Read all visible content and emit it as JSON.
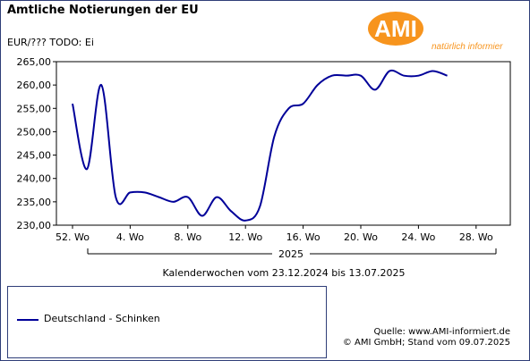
{
  "header": {
    "title": "Amtliche Notierungen der EU",
    "unit": "EUR/??? TODO: Ei"
  },
  "logo": {
    "text": "AMI",
    "tagline": "natürlich informiert.",
    "color": "#f7941d"
  },
  "chart_data": {
    "type": "line",
    "title": "Amtliche Notierungen der EU",
    "ylabel": "EUR/??? TODO: Ei",
    "xlabel": "Kalenderwochen vom 23.12.2024 bis 13.07.2025",
    "x_ticks": [
      "52. Wo",
      "4. Wo",
      "8. Wo",
      "12. Wo",
      "16. Wo",
      "20. Wo",
      "24. Wo",
      "28. Wo"
    ],
    "y_ticks": [
      "230,00",
      "235,00",
      "240,00",
      "245,00",
      "250,00",
      "255,00",
      "260,00",
      "265,00"
    ],
    "ylim": [
      230,
      265
    ],
    "year_label": "2025",
    "grid": false,
    "legend_position": "bottom-left",
    "series": [
      {
        "name": "Deutschland - Schinken",
        "color": "#000099",
        "weeks": [
          52,
          1,
          2,
          3,
          4,
          5,
          6,
          7,
          8,
          9,
          10,
          11,
          12,
          13,
          14,
          15,
          16,
          17,
          18,
          19,
          20,
          21,
          22,
          23,
          24,
          25,
          26
        ],
        "values": [
          256,
          242,
          260,
          236,
          237,
          237,
          236,
          235,
          236,
          232,
          236,
          233,
          231,
          234,
          249,
          255,
          256,
          260,
          262,
          262,
          262,
          259,
          263,
          262,
          262,
          263,
          262
        ]
      }
    ]
  },
  "legend": {
    "entries": [
      "Deutschland - Schinken"
    ]
  },
  "footer": {
    "source": "Quelle: www.AMI-informiert.de",
    "copyright": "© AMI GmbH; Stand vom  09.07.2025"
  }
}
